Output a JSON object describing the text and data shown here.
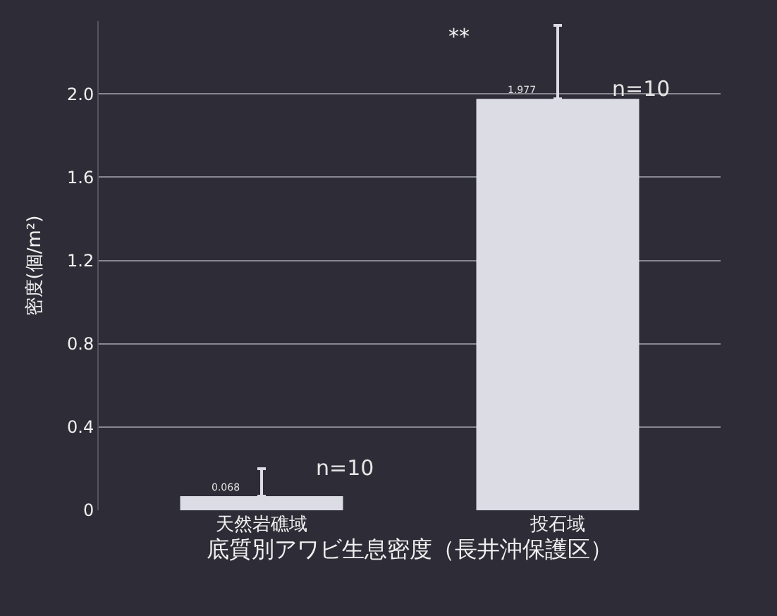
{
  "chart_data": {
    "type": "bar",
    "xlabel": "底質別アワビ生息密度（長井沖保護区）",
    "ylabel": "密度(個/m²)",
    "categories": [
      "天然岩礁域",
      "投石域"
    ],
    "values": [
      0.068,
      1.977
    ],
    "color": "#dcdce4",
    "value_labels": [
      "0.068",
      "1.977"
    ],
    "errors": [
      [
        0.068,
        0.2
      ],
      [
        1.977,
        2.33
      ]
    ],
    "ylim": [
      0,
      2.35
    ],
    "yticks": [
      0,
      0.4,
      0.8,
      1.2,
      1.6,
      {
        "value": 2.0,
        "label": "2.0"
      }
    ],
    "grid": "y",
    "annotations": [
      {
        "text": "n=10",
        "x": "天然岩礁域",
        "y": 0.13
      },
      {
        "text": "n=10",
        "x": "投石域",
        "y": 1.95
      },
      "**"
    ]
  }
}
